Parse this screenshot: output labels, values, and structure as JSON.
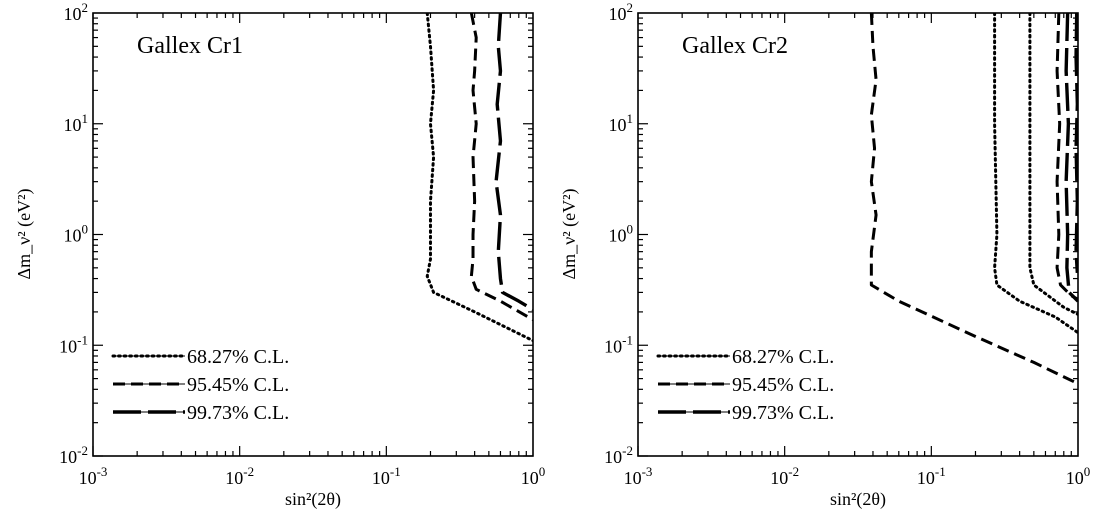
{
  "chart_data": [
    {
      "type": "line",
      "title": "Gallex Cr1",
      "xlabel": "sin²(2θ)",
      "ylabel": "Δm_ν² (eV²)",
      "x_scale": "log",
      "y_scale": "log",
      "xlim": [
        0.001,
        1
      ],
      "ylim": [
        0.01,
        100
      ],
      "x_ticks": [
        {
          "value": 0.001,
          "base": "10",
          "exp": "-3"
        },
        {
          "value": 0.01,
          "base": "10",
          "exp": "-2"
        },
        {
          "value": 0.1,
          "base": "10",
          "exp": "-1"
        },
        {
          "value": 1,
          "base": "10",
          "exp": "0"
        }
      ],
      "y_ticks": [
        {
          "value": 0.01,
          "base": "10",
          "exp": "-2"
        },
        {
          "value": 0.1,
          "base": "10",
          "exp": "-1"
        },
        {
          "value": 1,
          "base": "10",
          "exp": "0"
        },
        {
          "value": 10,
          "base": "10",
          "exp": "1"
        },
        {
          "value": 100,
          "base": "10",
          "exp": "2"
        }
      ],
      "legend_position": "bottom-left",
      "series": [
        {
          "name": "68.27% C.L.",
          "style": "dotted",
          "points": [
            [
              0.19,
              100
            ],
            [
              0.2,
              50
            ],
            [
              0.21,
              20
            ],
            [
              0.2,
              10
            ],
            [
              0.21,
              5
            ],
            [
              0.2,
              2
            ],
            [
              0.2,
              1
            ],
            [
              0.2,
              0.6
            ],
            [
              0.19,
              0.42
            ],
            [
              0.21,
              0.3
            ],
            [
              0.4,
              0.2
            ],
            [
              1.0,
              0.11
            ]
          ]
        },
        {
          "name": "95.45% C.L.",
          "style": "dashed",
          "points": [
            [
              0.38,
              100
            ],
            [
              0.41,
              60
            ],
            [
              0.4,
              30
            ],
            [
              0.39,
              20
            ],
            [
              0.41,
              10
            ],
            [
              0.39,
              5
            ],
            [
              0.4,
              2
            ],
            [
              0.39,
              1
            ],
            [
              0.39,
              0.6
            ],
            [
              0.38,
              0.42
            ],
            [
              0.41,
              0.32
            ],
            [
              0.6,
              0.25
            ],
            [
              1.0,
              0.17
            ]
          ]
        },
        {
          "name": "99.73% C.L.",
          "style": "long-dashed",
          "points": [
            [
              0.6,
              100
            ],
            [
              0.58,
              50
            ],
            [
              0.6,
              30
            ],
            [
              0.57,
              15
            ],
            [
              0.6,
              7
            ],
            [
              0.56,
              3
            ],
            [
              0.6,
              1.5
            ],
            [
              0.58,
              0.7
            ],
            [
              0.6,
              0.4
            ],
            [
              0.62,
              0.3
            ],
            [
              0.8,
              0.25
            ],
            [
              1.0,
              0.21
            ]
          ]
        }
      ]
    },
    {
      "type": "line",
      "title": "Gallex Cr2",
      "xlabel": "sin²(2θ)",
      "ylabel": "Δm_ν² (eV²)",
      "x_scale": "log",
      "y_scale": "log",
      "xlim": [
        0.001,
        1
      ],
      "ylim": [
        0.01,
        100
      ],
      "x_ticks": [
        {
          "value": 0.001,
          "base": "10",
          "exp": "-3"
        },
        {
          "value": 0.01,
          "base": "10",
          "exp": "-2"
        },
        {
          "value": 0.1,
          "base": "10",
          "exp": "-1"
        },
        {
          "value": 1,
          "base": "10",
          "exp": "0"
        }
      ],
      "y_ticks": [
        {
          "value": 0.01,
          "base": "10",
          "exp": "-2"
        },
        {
          "value": 0.1,
          "base": "10",
          "exp": "-1"
        },
        {
          "value": 1,
          "base": "10",
          "exp": "0"
        },
        {
          "value": 10,
          "base": "10",
          "exp": "1"
        },
        {
          "value": 100,
          "base": "10",
          "exp": "2"
        }
      ],
      "legend_position": "bottom-left",
      "series": [
        {
          "name": "68.27% C.L.",
          "style": "dotted",
          "points": [
            [
              0.27,
              100
            ],
            [
              0.27,
              10
            ],
            [
              0.28,
              1
            ],
            [
              0.27,
              0.5
            ],
            [
              0.28,
              0.35
            ],
            [
              0.4,
              0.25
            ],
            [
              0.7,
              0.18
            ],
            [
              1.0,
              0.13
            ]
          ]
        },
        {
          "name": "68.27% C.L.",
          "style": "dotted",
          "points": [
            [
              0.47,
              100
            ],
            [
              0.47,
              10
            ],
            [
              0.47,
              1
            ],
            [
              0.47,
              0.5
            ],
            [
              0.5,
              0.35
            ],
            [
              0.8,
              0.22
            ],
            [
              1.0,
              0.19
            ]
          ]
        },
        {
          "name": "95.45% C.L.",
          "style": "dashed",
          "points": [
            [
              0.039,
              100
            ],
            [
              0.04,
              50
            ],
            [
              0.042,
              25
            ],
            [
              0.039,
              12
            ],
            [
              0.041,
              6
            ],
            [
              0.039,
              3
            ],
            [
              0.042,
              1.5
            ],
            [
              0.039,
              0.7
            ],
            [
              0.039,
              0.35
            ],
            [
              0.06,
              0.25
            ],
            [
              0.2,
              0.12
            ],
            [
              0.5,
              0.07
            ],
            [
              1.0,
              0.045
            ]
          ]
        },
        {
          "name": "95.45% C.L.",
          "style": "dashed",
          "points": [
            [
              0.74,
              100
            ],
            [
              0.72,
              30
            ],
            [
              0.75,
              10
            ],
            [
              0.72,
              3
            ],
            [
              0.74,
              1
            ],
            [
              0.72,
              0.5
            ],
            [
              0.76,
              0.35
            ],
            [
              0.9,
              0.28
            ],
            [
              1.0,
              0.26
            ]
          ]
        },
        {
          "name": "99.73% C.L.",
          "style": "long-dashed",
          "points": [
            [
              0.85,
              100
            ],
            [
              0.83,
              30
            ],
            [
              0.86,
              10
            ],
            [
              0.83,
              3
            ],
            [
              0.85,
              1
            ],
            [
              0.84,
              0.5
            ],
            [
              0.87,
              0.3
            ],
            [
              1.0,
              0.25
            ]
          ]
        },
        {
          "name": "99.73% C.L.",
          "style": "long-dashed",
          "points": [
            [
              0.98,
              100
            ],
            [
              0.97,
              40
            ],
            [
              0.99,
              15
            ],
            [
              0.97,
              6
            ],
            [
              0.99,
              2
            ],
            [
              0.97,
              0.7
            ],
            [
              0.99,
              0.45
            ]
          ]
        }
      ]
    }
  ]
}
